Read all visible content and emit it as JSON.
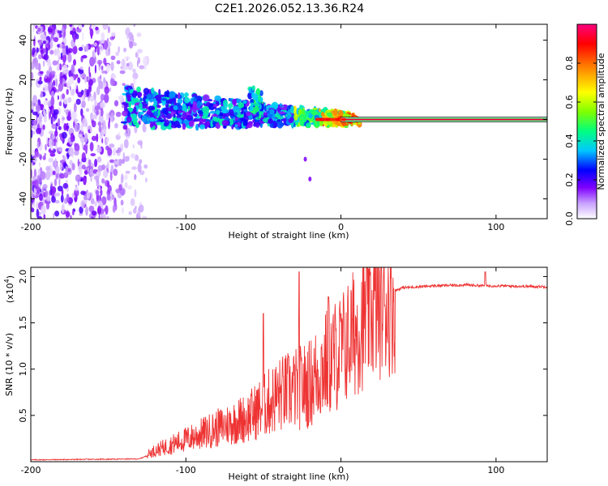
{
  "figure_title": "C2E1.2026.052.13.36.R24",
  "chart_data": [
    {
      "type": "heatmap",
      "title": "C2E1.2026.052.13.36.R24",
      "xlabel": "Height of straight line (km)",
      "ylabel": "Frequency (Hz)",
      "xlim": [
        -200,
        133
      ],
      "ylim": [
        -50,
        48
      ],
      "xticks": [
        -200,
        -100,
        0,
        100
      ],
      "yticks": [
        -40,
        -20,
        0,
        20,
        40
      ],
      "xtick_labels": [
        "-200",
        "-100",
        "0",
        "100"
      ],
      "ytick_labels": [
        "-40",
        "-20",
        "0",
        "20",
        "40"
      ],
      "colorbar": {
        "label": "Normalized spectral amplitude",
        "range": [
          0.0,
          1.0
        ],
        "ticks": [
          0.0,
          0.2,
          0.4,
          0.6,
          0.8
        ],
        "tick_labels": [
          "0.0",
          "0.2",
          "0.4",
          "0.6",
          "0.8"
        ],
        "colormap": [
          "#ffffff",
          "#c8a0ff",
          "#7f00ff",
          "#0000ff",
          "#00c8ff",
          "#00ff80",
          "#80ff00",
          "#ffff00",
          "#ff8000",
          "#ff0000",
          "#ff0080"
        ]
      },
      "carrier_line": {
        "frequency_hz": 0,
        "from_km": 0,
        "to_km": 133
      },
      "features": [
        {
          "desc": "noise region",
          "x_range": [
            -200,
            -130
          ],
          "y_range": [
            -50,
            48
          ],
          "amplitude": 0.15
        },
        {
          "desc": "signal band",
          "x_range": [
            -140,
            10
          ],
          "y_center": [
            6,
            0
          ],
          "amplitude": 0.5
        },
        {
          "desc": "bump",
          "x": -55,
          "y": 14
        }
      ]
    },
    {
      "type": "line",
      "xlabel": "Height of straight line (km)",
      "ylabel": "SNR (10 * v/v)",
      "y_multiplier_label": "(x10",
      "y_multiplier_exp": "4",
      "xlim": [
        -200,
        133
      ],
      "ylim": [
        0,
        2.1
      ],
      "xticks": [
        -200,
        -100,
        0,
        100
      ],
      "yticks": [
        0.5,
        1.0,
        1.5,
        2.0
      ],
      "xtick_labels": [
        "-200",
        "-100",
        "0",
        "100"
      ],
      "ytick_labels": [
        "0.5",
        "1.0",
        "1.5",
        "2.0"
      ],
      "series": [
        {
          "name": "SNR",
          "color": "#ee3333",
          "x_range": [
            -200,
            133
          ],
          "envelope_x": [
            -200,
            -130,
            -120,
            -100,
            -80,
            -60,
            -40,
            -20,
            -10,
            0,
            10,
            20,
            30,
            40,
            60,
            80,
            93,
            100,
            133
          ],
          "envelope_y": [
            0.02,
            0.03,
            0.1,
            0.2,
            0.3,
            0.4,
            0.6,
            0.7,
            0.9,
            1.1,
            1.4,
            1.7,
            1.82,
            1.88,
            1.9,
            1.91,
            1.9,
            1.9,
            1.89
          ],
          "peaks": [
            {
              "x": -50,
              "y": 1.6
            },
            {
              "x": -27,
              "y": 2.05
            },
            {
              "x": -8,
              "y": 1.78
            },
            {
              "x": 93,
              "y": 2.05
            }
          ]
        }
      ]
    }
  ]
}
